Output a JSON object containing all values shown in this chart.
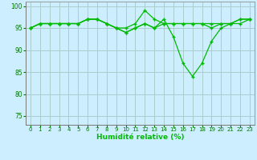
{
  "xlabel": "Humidité relative (%)",
  "ylabel": "",
  "background_color": "#cceeff",
  "grid_color": "#aacccc",
  "line_color": "#00bb00",
  "xlim_min": -0.5,
  "xlim_max": 23.5,
  "ylim_min": 73,
  "ylim_max": 101,
  "yticks": [
    75,
    80,
    85,
    90,
    95,
    100
  ],
  "xticks": [
    0,
    1,
    2,
    3,
    4,
    5,
    6,
    7,
    8,
    9,
    10,
    11,
    12,
    13,
    14,
    15,
    16,
    17,
    18,
    19,
    20,
    21,
    22,
    23
  ],
  "series1_x": [
    0,
    1,
    2,
    3,
    4,
    5,
    6,
    7,
    8,
    9,
    10,
    11,
    12,
    13,
    14,
    15,
    16,
    17,
    18,
    19,
    20,
    21,
    22,
    23
  ],
  "series1_y": [
    95,
    96,
    96,
    96,
    96,
    96,
    97,
    97,
    96,
    95,
    95,
    96,
    99,
    97,
    96,
    96,
    96,
    96,
    96,
    95,
    96,
    96,
    97,
    97
  ],
  "series2_x": [
    0,
    1,
    2,
    3,
    4,
    5,
    6,
    7,
    8,
    9,
    10,
    11,
    12,
    13,
    14,
    15,
    16,
    17,
    18,
    19,
    20,
    21,
    22,
    23
  ],
  "series2_y": [
    95,
    96,
    96,
    96,
    96,
    96,
    97,
    97,
    96,
    95,
    94,
    95,
    96,
    95,
    96,
    96,
    96,
    96,
    96,
    96,
    96,
    96,
    97,
    97
  ],
  "series3_x": [
    0,
    1,
    2,
    3,
    4,
    5,
    6,
    7,
    8,
    9,
    10,
    11,
    12,
    13,
    14,
    15,
    16,
    17,
    18,
    19,
    20,
    21,
    22,
    23
  ],
  "series3_y": [
    95,
    96,
    96,
    96,
    96,
    96,
    97,
    97,
    96,
    95,
    94,
    95,
    96,
    95,
    97,
    93,
    87,
    84,
    87,
    92,
    95,
    96,
    96,
    97
  ]
}
